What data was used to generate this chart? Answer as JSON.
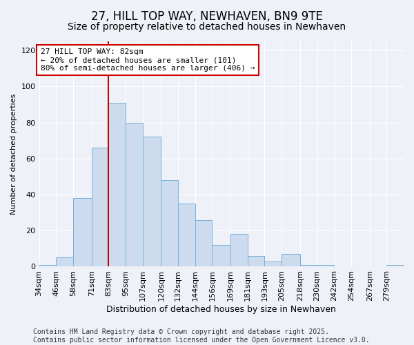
{
  "title": "27, HILL TOP WAY, NEWHAVEN, BN9 9TE",
  "subtitle": "Size of property relative to detached houses in Newhaven",
  "xlabel": "Distribution of detached houses by size in Newhaven",
  "ylabel": "Number of detached properties",
  "bins": [
    "34sqm",
    "46sqm",
    "58sqm",
    "71sqm",
    "83sqm",
    "95sqm",
    "107sqm",
    "120sqm",
    "132sqm",
    "144sqm",
    "156sqm",
    "169sqm",
    "181sqm",
    "193sqm",
    "205sqm",
    "218sqm",
    "230sqm",
    "242sqm",
    "254sqm",
    "267sqm",
    "279sqm"
  ],
  "bar_heights": [
    1,
    5,
    38,
    66,
    91,
    80,
    72,
    48,
    35,
    26,
    12,
    18,
    6,
    3,
    7,
    1,
    1,
    0,
    0,
    0,
    1
  ],
  "bar_color": "#ccdcee",
  "bar_edge_color": "#7ab0d8",
  "vline_x_bin": 4,
  "vline_color": "#cc0000",
  "annotation_text": "27 HILL TOP WAY: 82sqm\n← 20% of detached houses are smaller (101)\n80% of semi-detached houses are larger (406) →",
  "annotation_box_color": "white",
  "annotation_box_edge": "#cc0000",
  "ylim": [
    0,
    125
  ],
  "yticks": [
    0,
    20,
    40,
    60,
    80,
    100,
    120
  ],
  "bg_color": "#eef2f8",
  "grid_color": "white",
  "footer": "Contains HM Land Registry data © Crown copyright and database right 2025.\nContains public sector information licensed under the Open Government Licence v3.0.",
  "bin_edges": [
    34,
    46,
    58,
    71,
    83,
    95,
    107,
    120,
    132,
    144,
    156,
    169,
    181,
    193,
    205,
    218,
    230,
    242,
    254,
    267,
    279,
    291
  ],
  "title_fontsize": 12,
  "subtitle_fontsize": 10,
  "xlabel_fontsize": 9,
  "ylabel_fontsize": 8,
  "tick_fontsize": 8,
  "footer_fontsize": 7,
  "ann_fontsize": 8
}
